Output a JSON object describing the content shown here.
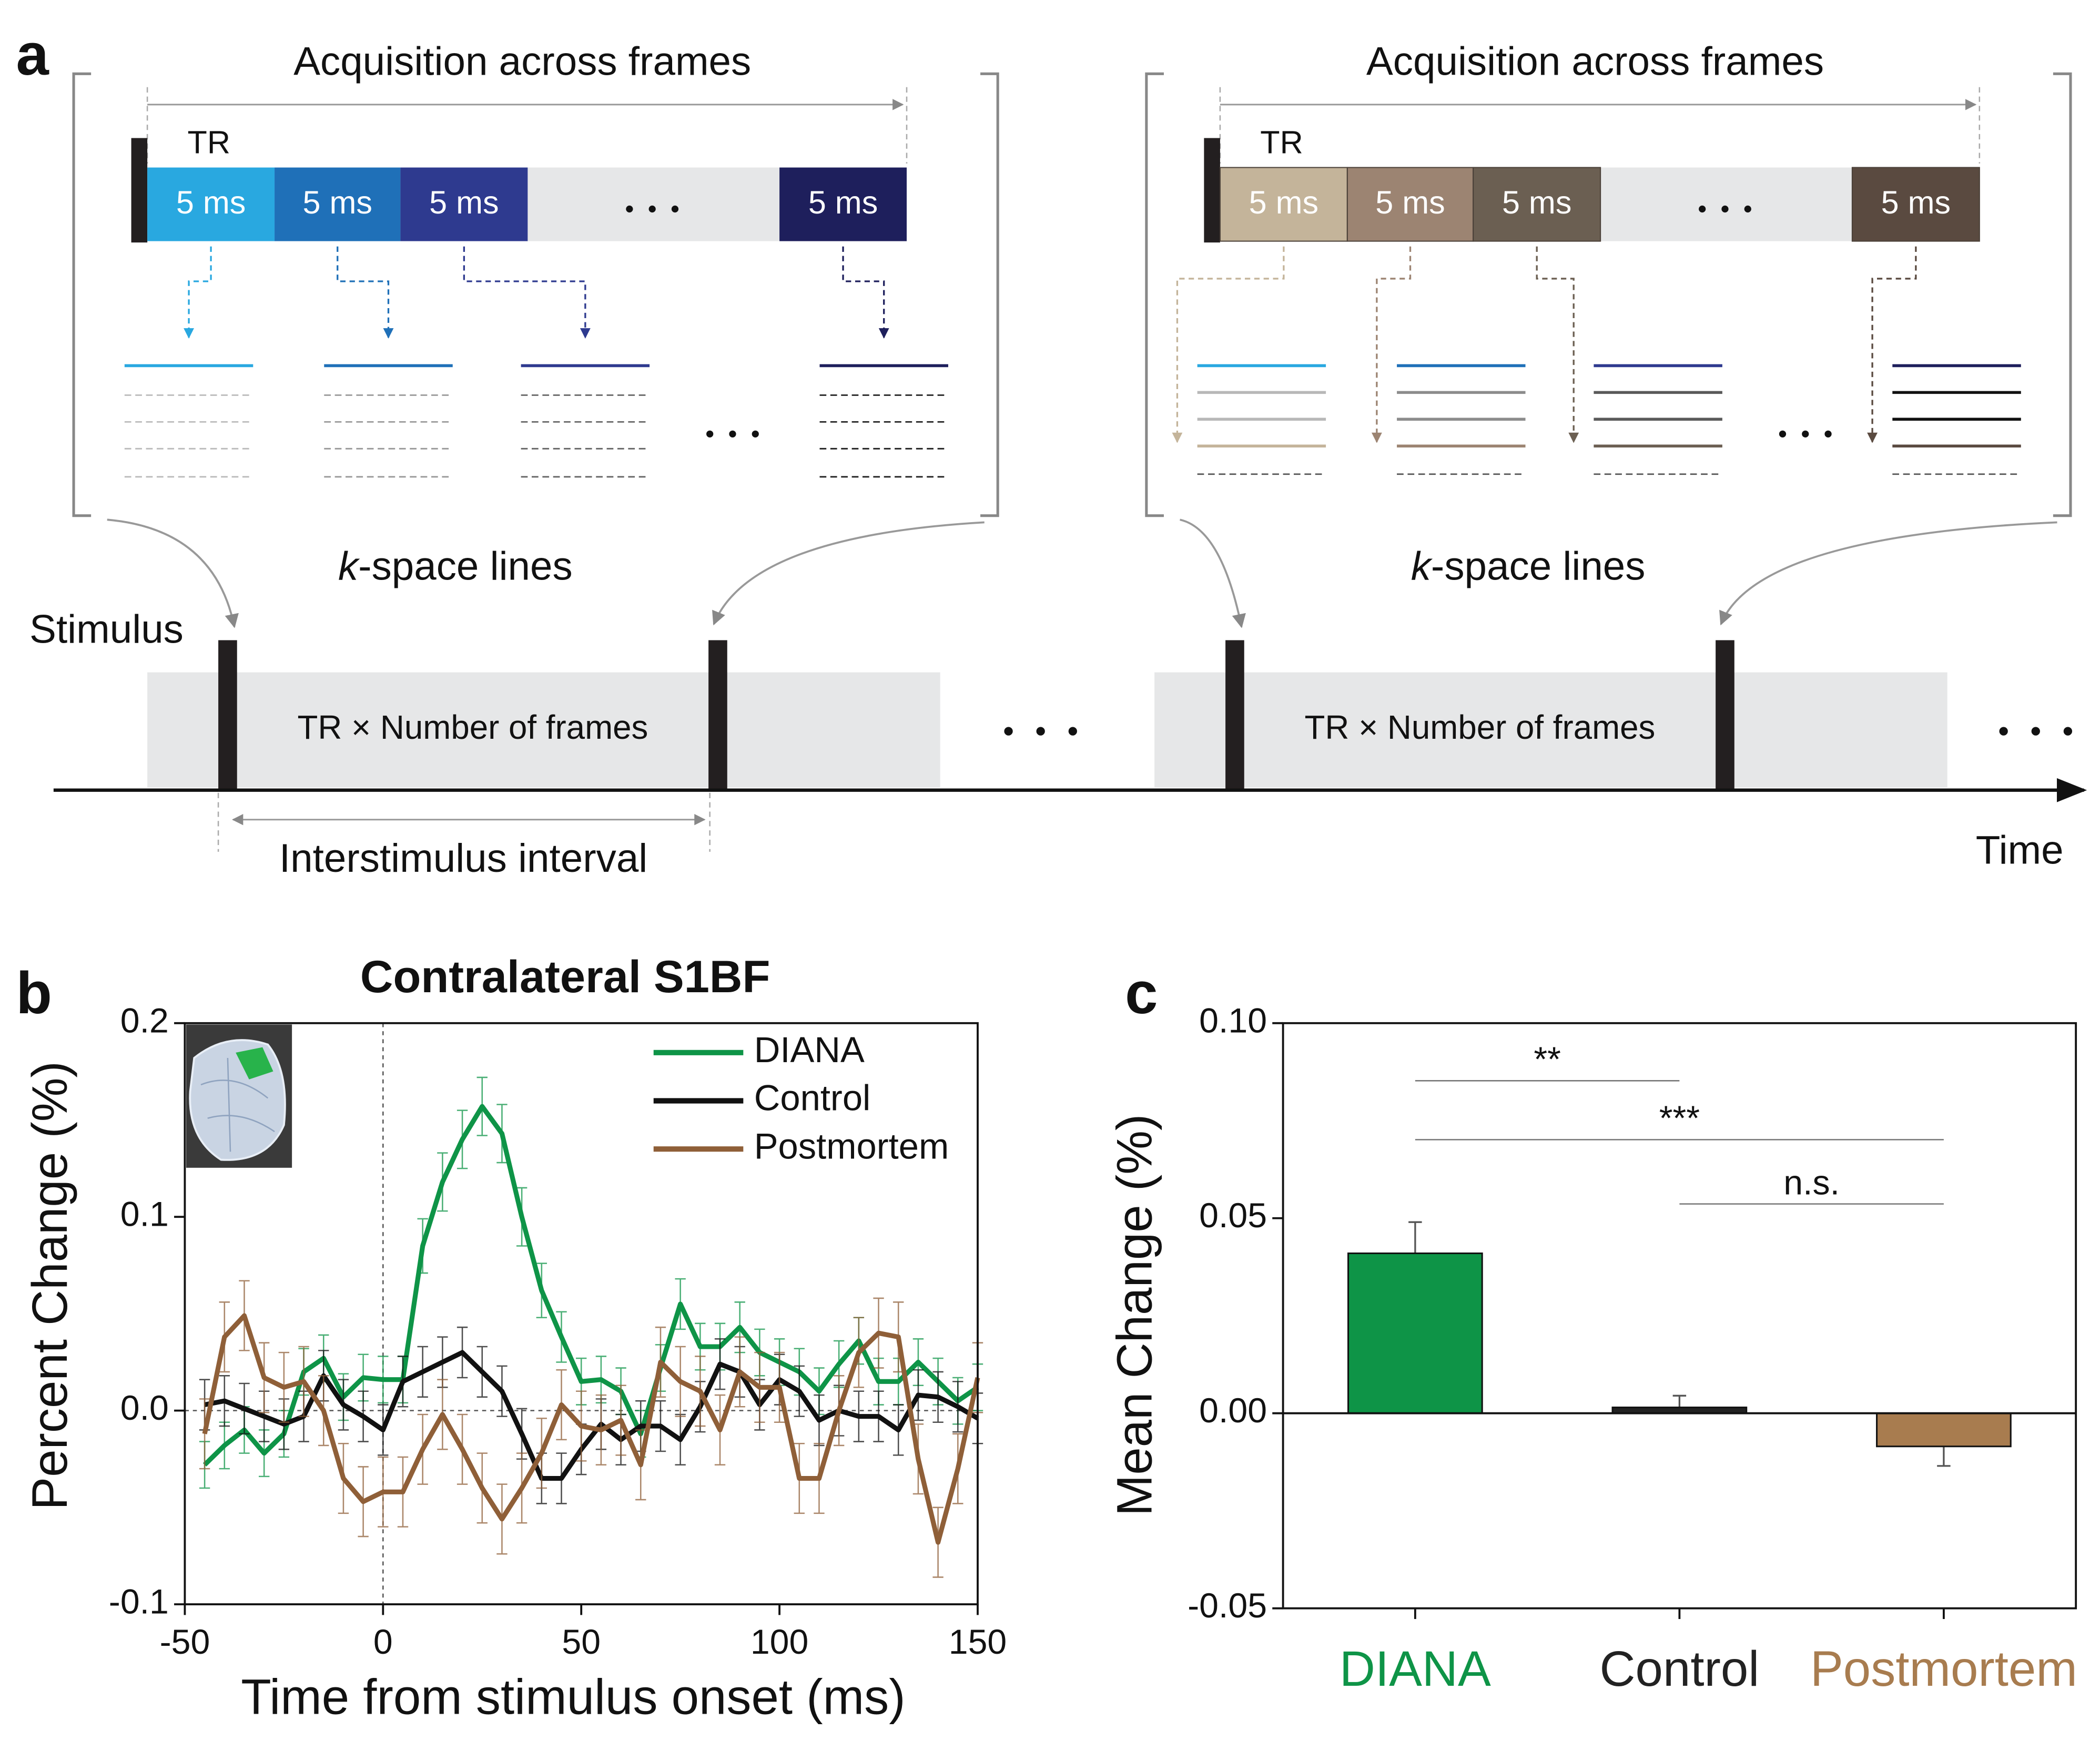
{
  "panel_a": {
    "label": "a",
    "groups": [
      {
        "title": "Acquisition across frames",
        "tr": "TR",
        "blocks": [
          "5 ms",
          "5 ms",
          "5 ms",
          "5 ms"
        ],
        "kspace_italic": "k",
        "kspace_rest": "-space lines",
        "window": "TR × Number of frames"
      },
      {
        "title": "Acquisition across frames",
        "tr": "TR",
        "blocks": [
          "5 ms",
          "5 ms",
          "5 ms",
          "5 ms"
        ],
        "kspace_italic": "k",
        "kspace_rest": "-space lines",
        "window": "TR × Number of frames"
      }
    ],
    "stimulus": "Stimulus",
    "interval": "Interstimulus interval",
    "time": "Time"
  },
  "chart_data": [
    {
      "type": "line",
      "label": "b",
      "title": "Contralateral S1BF",
      "xlabel": "Time from stimulus onset (ms)",
      "ylabel": "Percent Change (%)",
      "x": [
        -45,
        -40,
        -35,
        -30,
        -25,
        -20,
        -15,
        -10,
        -5,
        0,
        5,
        10,
        15,
        20,
        25,
        30,
        35,
        40,
        45,
        50,
        55,
        60,
        65,
        70,
        75,
        80,
        85,
        90,
        95,
        100,
        105,
        110,
        115,
        120,
        125,
        130,
        135,
        140,
        145,
        150
      ],
      "series": [
        {
          "name": "DIANA",
          "color": "#0e9447",
          "values": [
            -0.028,
            -0.018,
            -0.01,
            -0.022,
            -0.012,
            0.02,
            0.027,
            0.007,
            0.017,
            0.016,
            0.016,
            0.085,
            0.118,
            0.14,
            0.157,
            0.143,
            0.1,
            0.062,
            0.038,
            0.015,
            0.016,
            0.01,
            -0.012,
            0.022,
            0.055,
            0.033,
            0.033,
            0.043,
            0.03,
            0.025,
            0.02,
            0.01,
            0.024,
            0.036,
            0.015,
            0.015,
            0.025,
            0.015,
            0.005,
            0.012
          ],
          "errors": [
            0.012,
            0.012,
            0.012,
            0.012,
            0.012,
            0.012,
            0.012,
            0.012,
            0.012,
            0.012,
            0.012,
            0.014,
            0.015,
            0.015,
            0.015,
            0.015,
            0.015,
            0.014,
            0.013,
            0.012,
            0.012,
            0.012,
            0.012,
            0.012,
            0.013,
            0.012,
            0.012,
            0.013,
            0.012,
            0.012,
            0.012,
            0.012,
            0.012,
            0.012,
            0.012,
            0.012,
            0.012,
            0.012,
            0.012,
            0.012
          ]
        },
        {
          "name": "Control",
          "color": "#111111",
          "values": [
            0.003,
            0.005,
            0.001,
            -0.003,
            -0.007,
            -0.003,
            0.018,
            0.003,
            -0.003,
            -0.01,
            0.015,
            0.02,
            0.025,
            0.03,
            0.02,
            0.01,
            -0.012,
            -0.035,
            -0.035,
            -0.02,
            -0.007,
            -0.015,
            -0.008,
            -0.008,
            -0.015,
            0.002,
            0.024,
            0.02,
            0.003,
            0.016,
            0.01,
            -0.005,
            0.0,
            -0.003,
            -0.003,
            -0.01,
            0.008,
            0.007,
            0.002,
            -0.004
          ],
          "errors": [
            0.013,
            0.013,
            0.013,
            0.013,
            0.013,
            0.013,
            0.013,
            0.013,
            0.013,
            0.013,
            0.013,
            0.013,
            0.013,
            0.013,
            0.013,
            0.013,
            0.013,
            0.013,
            0.013,
            0.013,
            0.013,
            0.013,
            0.013,
            0.013,
            0.013,
            0.013,
            0.013,
            0.013,
            0.013,
            0.013,
            0.013,
            0.013,
            0.013,
            0.013,
            0.013,
            0.013,
            0.013,
            0.013,
            0.013,
            0.013
          ]
        },
        {
          "name": "Postmortem",
          "color": "#8f5f38",
          "values": [
            -0.012,
            0.038,
            0.049,
            0.017,
            0.012,
            0.015,
            0.0,
            -0.035,
            -0.047,
            -0.042,
            -0.042,
            -0.02,
            -0.002,
            -0.02,
            -0.04,
            -0.056,
            -0.04,
            -0.022,
            0.003,
            -0.008,
            -0.01,
            -0.005,
            -0.028,
            0.025,
            0.015,
            0.01,
            -0.01,
            0.02,
            0.012,
            0.012,
            -0.035,
            -0.035,
            0.0,
            0.03,
            0.04,
            0.038,
            -0.025,
            -0.068,
            -0.03,
            0.017
          ],
          "errors": [
            0.018,
            0.018,
            0.018,
            0.018,
            0.018,
            0.018,
            0.018,
            0.018,
            0.018,
            0.018,
            0.018,
            0.018,
            0.018,
            0.018,
            0.018,
            0.018,
            0.018,
            0.018,
            0.018,
            0.018,
            0.018,
            0.018,
            0.018,
            0.018,
            0.018,
            0.018,
            0.018,
            0.018,
            0.018,
            0.018,
            0.018,
            0.018,
            0.018,
            0.018,
            0.018,
            0.018,
            0.018,
            0.018,
            0.018,
            0.018
          ]
        }
      ],
      "xlim": [
        -50,
        150
      ],
      "xticks": [
        -50,
        0,
        50,
        100,
        150
      ],
      "ylim": [
        -0.1,
        0.2
      ],
      "yticks": [
        -0.1,
        {
          "value": 0,
          "label": "0.0"
        },
        0.1,
        0.2
      ],
      "legend": "upper right"
    },
    {
      "type": "bar",
      "label": "c",
      "ylabel": "Mean Change (%)",
      "categories": [
        "DIANA",
        "Control",
        "Postmortem"
      ],
      "values": [
        0.041,
        0.0015,
        -0.0085
      ],
      "errors": [
        0.008,
        0.003,
        0.005
      ],
      "colors": [
        "#0e9447",
        "#222222",
        "#a87c4f"
      ],
      "ylim": [
        -0.05,
        0.1
      ],
      "yticks": [
        -0.05,
        {
          "value": 0,
          "label": "0.00"
        },
        0.05,
        {
          "value": 0.1,
          "label": "0.10"
        }
      ],
      "annotations": [
        {
          "text": "**",
          "from": "DIANA",
          "to": "Control"
        },
        {
          "text": "***",
          "from": "DIANA",
          "to": "Postmortem"
        },
        {
          "text": "n.s.",
          "from": "Control",
          "to": "Postmortem"
        }
      ]
    }
  ]
}
